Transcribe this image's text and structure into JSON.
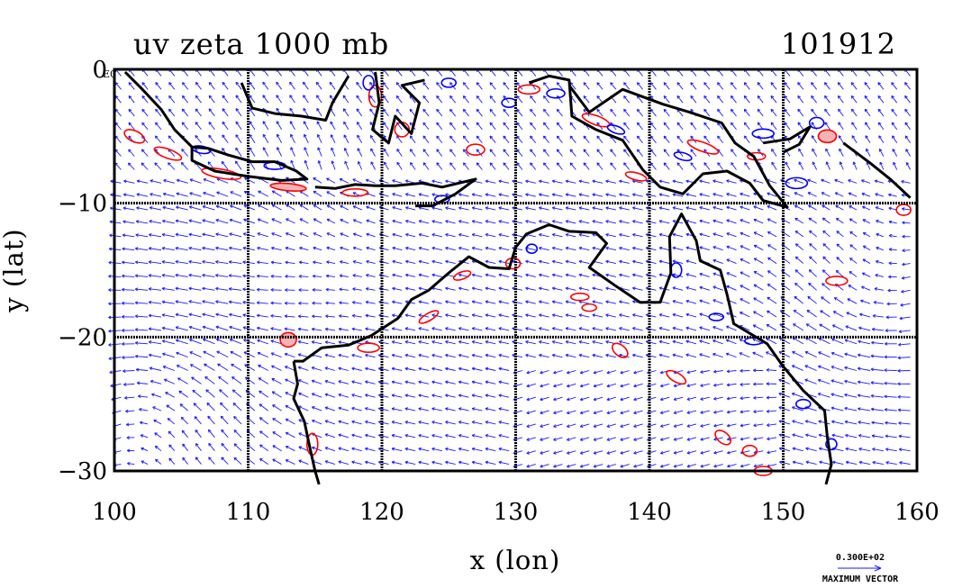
{
  "chart_data": {
    "type": "vector-field-map",
    "title": "uv zeta 1000 mb",
    "date_label": "101912",
    "xlabel": "x (lon)",
    "ylabel": "y (lat)",
    "xlim": [
      100,
      160
    ],
    "ylim": [
      -30,
      0
    ],
    "x_ticks": [
      "100",
      "110",
      "120",
      "130",
      "140",
      "150",
      "160"
    ],
    "y_ticks": [
      "0",
      "−10",
      "−20",
      "−30"
    ],
    "corner_tag": "E0",
    "grid": true,
    "grid_lon": [
      110,
      120,
      130,
      140,
      150
    ],
    "grid_lat": [
      -10,
      -20
    ],
    "reference_vector": {
      "value_label": "0.300E+02",
      "caption": "MAXIMUM VECTOR"
    },
    "series": [
      {
        "name": "wind vectors (u,v)",
        "color": "#0000ff"
      },
      {
        "name": "positive vorticity contours",
        "color": "#ff0000"
      },
      {
        "name": "negative vorticity contours",
        "color": "#0000ff"
      },
      {
        "name": "coastlines",
        "color": "#000000"
      }
    ],
    "colors": {
      "vectors": "#1a1aff",
      "positive": "#ff0000",
      "negative": "#0000ff",
      "positive_fill": "#f5b4b4",
      "negative_fill": "#b4b4f5",
      "coast": "#000000"
    }
  }
}
